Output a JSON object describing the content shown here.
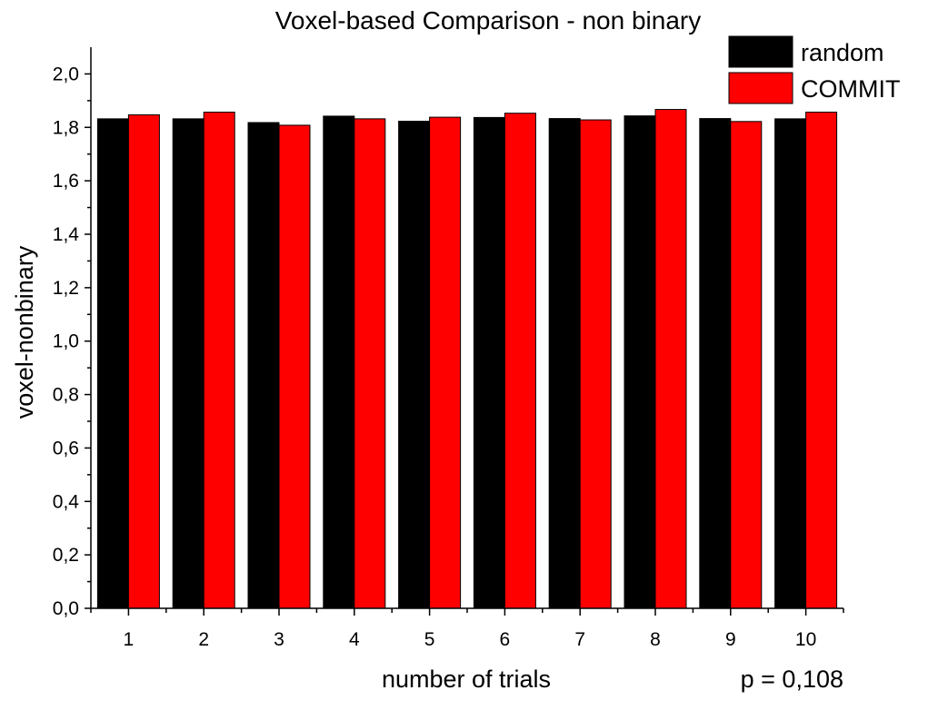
{
  "chart_data": {
    "type": "bar",
    "title": "Voxel-based Comparison - non binary",
    "xlabel": "number of trials",
    "ylabel": "voxel-nonbinary",
    "categories": [
      "1",
      "2",
      "3",
      "4",
      "5",
      "6",
      "7",
      "8",
      "9",
      "10"
    ],
    "series": [
      {
        "name": "random",
        "color": "#000000",
        "values": [
          1.832,
          1.832,
          1.818,
          1.842,
          1.823,
          1.837,
          1.833,
          1.843,
          1.833,
          1.832
        ]
      },
      {
        "name": "COMMIT",
        "color": "#ff0000",
        "values": [
          1.847,
          1.857,
          1.808,
          1.832,
          1.838,
          1.853,
          1.828,
          1.867,
          1.822,
          1.857
        ]
      }
    ],
    "ylim": [
      0,
      2.1
    ],
    "yticks": [
      0.0,
      0.2,
      0.4,
      0.6,
      0.8,
      1.0,
      1.2,
      1.4,
      1.6,
      1.8,
      2.0
    ],
    "ytick_labels": [
      "0,0",
      "0,2",
      "0,4",
      "0,6",
      "0,8",
      "1,0",
      "1,2",
      "1,4",
      "1,6",
      "1,8",
      "2,0"
    ],
    "legend_position": "top-right",
    "grid": false,
    "annotation": "p = 0,108"
  }
}
